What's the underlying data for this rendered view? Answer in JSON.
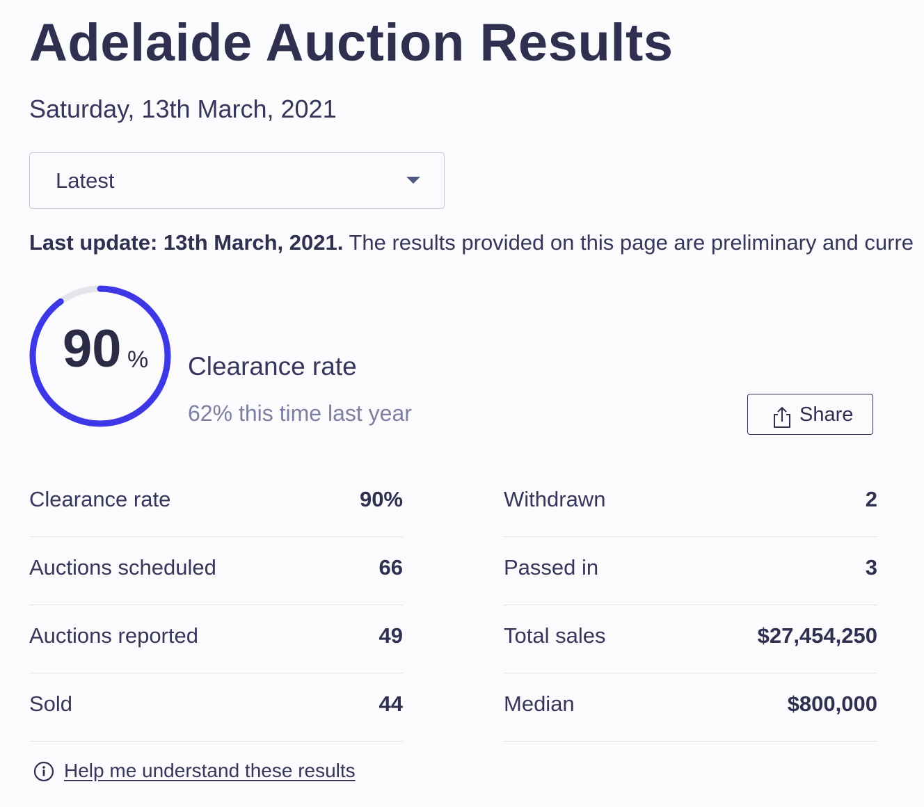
{
  "header": {
    "title": "Adelaide Auction Results",
    "date": "Saturday, 13th March, 2021"
  },
  "period_select": {
    "value": "Latest"
  },
  "update_notice": {
    "bold": "Last update: 13th March, 2021.",
    "text": " The results provided on this page are preliminary and curre"
  },
  "clearance": {
    "rate_value": "90",
    "rate_unit": "%",
    "rate_fraction": 0.9,
    "label": "Clearance rate",
    "last_year": "62% this time last year",
    "accent_color": "#3d37e6",
    "track_color": "#e4e4ec"
  },
  "share_button": {
    "label": "Share"
  },
  "stats_left": [
    {
      "label": "Clearance rate",
      "value": "90%"
    },
    {
      "label": "Auctions scheduled",
      "value": "66"
    },
    {
      "label": "Auctions reported",
      "value": "49"
    },
    {
      "label": "Sold",
      "value": "44"
    }
  ],
  "stats_right": [
    {
      "label": "Withdrawn",
      "value": "2"
    },
    {
      "label": "Passed in",
      "value": "3"
    },
    {
      "label": "Total sales",
      "value": "$27,454,250"
    },
    {
      "label": "Median",
      "value": "$800,000"
    }
  ],
  "help": {
    "label": "Help me understand these results",
    "icon": "info-icon"
  }
}
